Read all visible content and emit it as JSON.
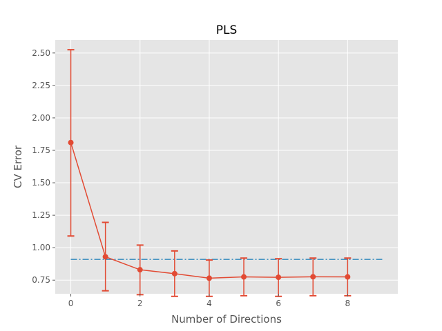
{
  "chart_data": {
    "type": "line",
    "title": "PLS",
    "xlabel": "Number of Directions",
    "ylabel": "CV Error",
    "xlim": [
      -0.45,
      9.45
    ],
    "ylim": [
      0.645,
      2.6
    ],
    "xticks": [
      0,
      2,
      4,
      6,
      8
    ],
    "xtick_labels": [
      "0",
      "2",
      "4",
      "6",
      "8"
    ],
    "yticks": [
      0.75,
      1.0,
      1.25,
      1.5,
      1.75,
      2.0,
      2.25,
      2.5
    ],
    "ytick_labels": [
      "0.75",
      "1.00",
      "1.25",
      "1.50",
      "1.75",
      "2.00",
      "2.25",
      "2.50"
    ],
    "grid": true,
    "series": [
      {
        "x": [
          0,
          1,
          2,
          3,
          4,
          5,
          6,
          7,
          8
        ],
        "values": [
          1.81,
          0.93,
          0.83,
          0.8,
          0.765,
          0.775,
          0.772,
          0.776,
          0.775
        ],
        "err_low": [
          1.09,
          0.668,
          0.638,
          0.625,
          0.625,
          0.63,
          0.625,
          0.63,
          0.63
        ],
        "err_high": [
          2.525,
          1.195,
          1.02,
          0.975,
          0.905,
          0.92,
          0.915,
          0.92,
          0.92
        ],
        "color": "#E24A33",
        "style": "line-with-markers-and-error-bars"
      }
    ],
    "reference_line": {
      "y": 0.91,
      "x_start": 0,
      "x_end": 9,
      "color": "#348ABD",
      "style": "dash-dot"
    }
  },
  "colors": {
    "plot_background": "#E5E5E5",
    "grid": "#FFFFFF",
    "text": "#555555"
  }
}
